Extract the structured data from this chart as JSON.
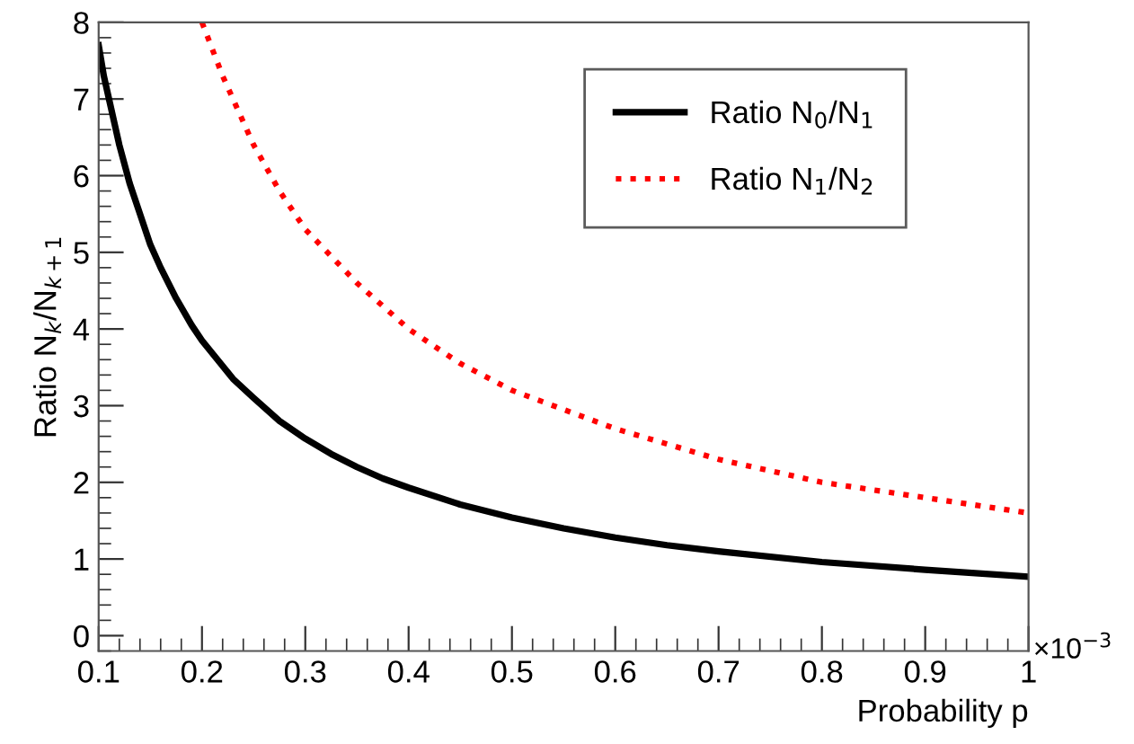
{
  "chart_data": {
    "type": "line",
    "xlabel": "Probability p",
    "ylabel": "Ratio N$_{k}$/N$_{k+1}$",
    "xlim": [
      0.1,
      1
    ],
    "xticks": [
      0.1,
      0.2,
      0.3,
      0.4,
      0.5,
      0.6,
      0.7,
      0.8,
      0.9,
      1
    ],
    "ylim": [
      -0.2,
      8
    ],
    "yticks": [
      0,
      1,
      2,
      3,
      4,
      5,
      6,
      7,
      8
    ],
    "annotations": [
      "×10$^{−3}$"
    ],
    "legend": "top right",
    "grid": false,
    "series": [
      {
        "name": "Ratio N$_{0}$/N$_{1}$",
        "color": "#000000",
        "line_style": "solid",
        "x": [
          0.1,
          0.105,
          0.11,
          0.115,
          0.12,
          0.13,
          0.14,
          0.15,
          0.16,
          0.175,
          0.19,
          0.2,
          0.215,
          0.23,
          0.25,
          0.275,
          0.3,
          0.325,
          0.35,
          0.375,
          0.4,
          0.45,
          0.5,
          0.55,
          0.6,
          0.65,
          0.7,
          0.8,
          0.9,
          1.0
        ],
        "values": [
          7.7,
          7.3,
          7.0,
          6.7,
          6.4,
          5.9,
          5.5,
          5.1,
          4.8,
          4.4,
          4.05,
          3.85,
          3.6,
          3.35,
          3.1,
          2.8,
          2.57,
          2.37,
          2.2,
          2.05,
          1.93,
          1.71,
          1.54,
          1.4,
          1.28,
          1.18,
          1.1,
          0.96,
          0.86,
          0.77
        ]
      },
      {
        "name": "Ratio N$_{1}$/N$_{2}$",
        "color": "#ff0000",
        "line_style": "dotted",
        "x": [
          0.2,
          0.22,
          0.25,
          0.275,
          0.3,
          0.35,
          0.4,
          0.45,
          0.5,
          0.6,
          0.7,
          0.8,
          0.9,
          1.0
        ],
        "values": [
          8.0,
          7.3,
          6.4,
          5.8,
          5.3,
          4.6,
          4.0,
          3.55,
          3.2,
          2.7,
          2.3,
          2.0,
          1.8,
          1.6
        ]
      }
    ]
  }
}
